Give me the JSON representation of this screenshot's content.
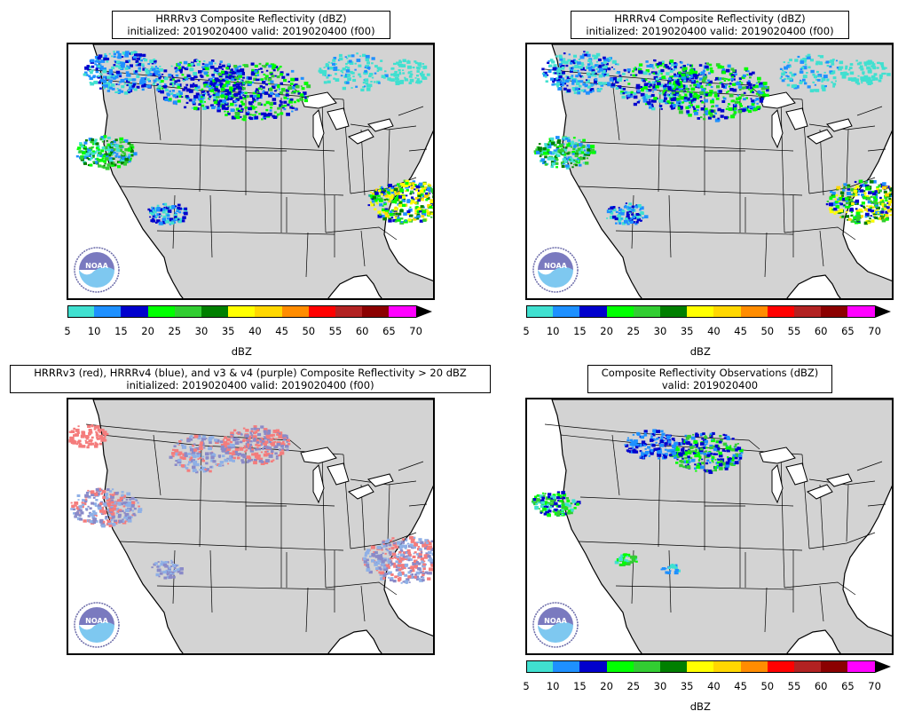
{
  "panels": [
    {
      "id": "p1",
      "title_line1": "HRRRv3 Composite Reflectivity (dBZ)",
      "title_line2": "initialized: 2019020400 valid: 2019020400 (f00)",
      "logo_text": "NOAA"
    },
    {
      "id": "p2",
      "title_line1": "HRRRv4 Composite Reflectivity (dBZ)",
      "title_line2": "initialized: 2019020400 valid: 2019020400 (f00)",
      "logo_text": "NOAA"
    },
    {
      "id": "p3",
      "title_line1": "HRRRv3 (red), HRRRv4 (blue), and v3 & v4 (purple) Composite Reflectivity > 20 dBZ",
      "title_line2": "initialized: 2019020400 valid: 2019020400 (f00)",
      "logo_text": "NOAA"
    },
    {
      "id": "p4",
      "title_line1": "Composite Reflectivity Observations (dBZ)",
      "title_line2": "valid: 2019020400",
      "logo_text": "NOAA"
    }
  ],
  "colorbar": {
    "ticks": [
      "5",
      "10",
      "15",
      "20",
      "25",
      "30",
      "35",
      "40",
      "45",
      "50",
      "55",
      "60",
      "65",
      "70"
    ],
    "unit_label": "dBZ",
    "colors": [
      "#40e0d0",
      "#1e90ff",
      "#0000cd",
      "#00ff00",
      "#32cd32",
      "#007f00",
      "#ffff00",
      "#ffd700",
      "#ff8c00",
      "#ff0000",
      "#b22222",
      "#8b0000",
      "#ff00ff"
    ]
  },
  "colors": {
    "land": "#d3d3d3",
    "ocean": "#ffffff",
    "v3_only": "#f47c7c",
    "v4_only": "#8fb0e6",
    "both": "#8a8ac8"
  }
}
